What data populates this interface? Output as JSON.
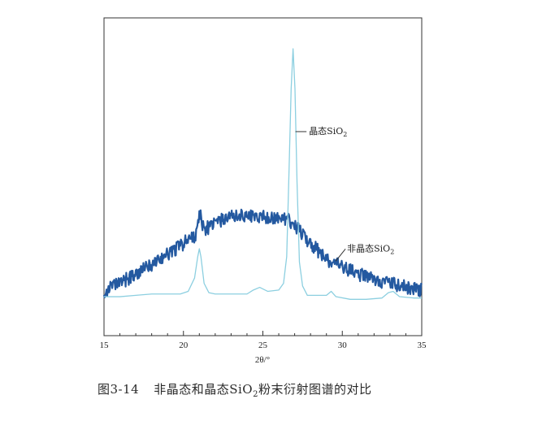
{
  "caption": {
    "figure_number": "图3-14",
    "text_before_sub": "非晶态和晶态SiO",
    "subscript": "2",
    "text_after_sub": "粉末衍射图谱的对比"
  },
  "chart_data": {
    "type": "line",
    "title": "",
    "xlabel": "2θ/°",
    "ylabel": "",
    "xlim": [
      15,
      35
    ],
    "ylim": [
      0,
      100
    ],
    "xticks": [
      15,
      20,
      25,
      30,
      35
    ],
    "grid": false,
    "annotations": [
      {
        "id": "crystalline",
        "text": "晶态SiO",
        "sub": "2",
        "x": 27.9,
        "y": 68
      },
      {
        "id": "amorphous",
        "text": "非晶态SiO",
        "sub": "2",
        "x": 30.3,
        "y": 24
      }
    ],
    "series": [
      {
        "id": "crystalline",
        "color": "#8ccfe0",
        "x": [
          15.0,
          16.0,
          17.0,
          18.0,
          19.0,
          19.8,
          20.3,
          20.7,
          20.9,
          21.0,
          21.1,
          21.3,
          21.6,
          22.0,
          23.0,
          24.0,
          24.4,
          24.8,
          25.3,
          26.0,
          26.3,
          26.5,
          26.65,
          26.78,
          26.9,
          27.02,
          27.15,
          27.3,
          27.5,
          27.8,
          28.5,
          29.0,
          29.3,
          29.6,
          30.5,
          31.5,
          32.5,
          32.9,
          33.2,
          33.6,
          34.5,
          35.0
        ],
        "y": [
          7.0,
          7.0,
          7.5,
          8.0,
          8.0,
          8.0,
          9.0,
          14.0,
          22.0,
          25.0,
          22.0,
          12.0,
          8.5,
          8.0,
          8.0,
          8.0,
          9.5,
          10.5,
          9.0,
          9.5,
          12.0,
          22.0,
          55.0,
          85.0,
          100.0,
          85.0,
          50.0,
          20.0,
          11.0,
          7.5,
          7.5,
          7.5,
          9.0,
          7.0,
          6.0,
          6.0,
          6.5,
          8.5,
          9.0,
          7.0,
          6.5,
          6.5
        ]
      },
      {
        "id": "amorphous",
        "color": "#2459a0",
        "x": [
          15.0,
          16.0,
          17.0,
          18.0,
          19.0,
          20.0,
          21.0,
          22.0,
          22.5,
          23.0,
          23.5,
          24.0,
          25.0,
          26.0,
          26.5,
          27.0,
          28.0,
          29.0,
          30.0,
          31.0,
          32.0,
          33.0,
          34.0,
          35.0
        ],
        "y": [
          9.0,
          12.0,
          15.5,
          19.0,
          23.0,
          27.0,
          31.0,
          34.5,
          36.0,
          37.0,
          37.5,
          37.5,
          37.0,
          36.5,
          36.0,
          34.0,
          27.0,
          21.0,
          18.0,
          15.5,
          13.5,
          12.0,
          10.5,
          9.5
        ]
      }
    ]
  }
}
